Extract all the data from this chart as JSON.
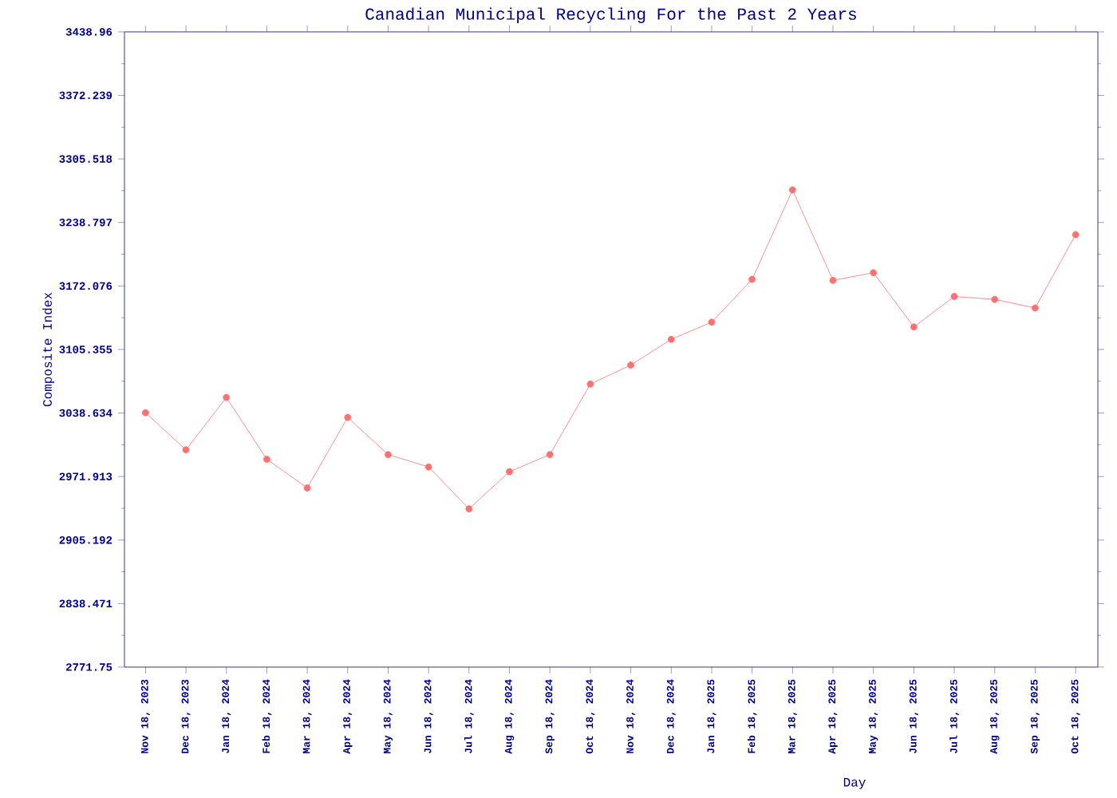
{
  "chart_data": {
    "type": "line",
    "title": "Canadian Municipal Recycling For the Past 2 Years",
    "xlabel": "Day",
    "ylabel": "Composite Index",
    "categories": [
      "Nov 18, 2023",
      "Dec 18, 2023",
      "Jan 18, 2024",
      "Feb 18, 2024",
      "Mar 18, 2024",
      "Apr 18, 2024",
      "May 18, 2024",
      "Jun 18, 2024",
      "Jul 18, 2024",
      "Aug 18, 2024",
      "Sep 18, 2024",
      "Oct 18, 2024",
      "Nov 18, 2024",
      "Dec 18, 2024",
      "Jan 18, 2025",
      "Feb 18, 2025",
      "Mar 18, 2025",
      "Apr 18, 2025",
      "May 18, 2025",
      "Jun 18, 2025",
      "Jul 18, 2025",
      "Aug 18, 2025",
      "Sep 18, 2025",
      "Oct 18, 2025"
    ],
    "series": [
      {
        "color": "#ff7070",
        "values": [
          3039,
          3000,
          3055,
          2990,
          2960,
          3034,
          2995,
          2982,
          2938,
          2977,
          2995,
          3069,
          3089,
          3116,
          3134,
          3179,
          3273,
          3178,
          3186,
          3129,
          3161,
          3158,
          3149,
          3226
        ]
      }
    ],
    "ylim": [
      2771.75,
      3438.96
    ],
    "yticks": [
      2771.75,
      2838.471,
      2905.192,
      2971.913,
      3038.634,
      3105.355,
      3172.076,
      3238.797,
      3305.518,
      3372.239,
      3438.96
    ],
    "grid": false,
    "marker": "circle",
    "line_style": "solid"
  }
}
